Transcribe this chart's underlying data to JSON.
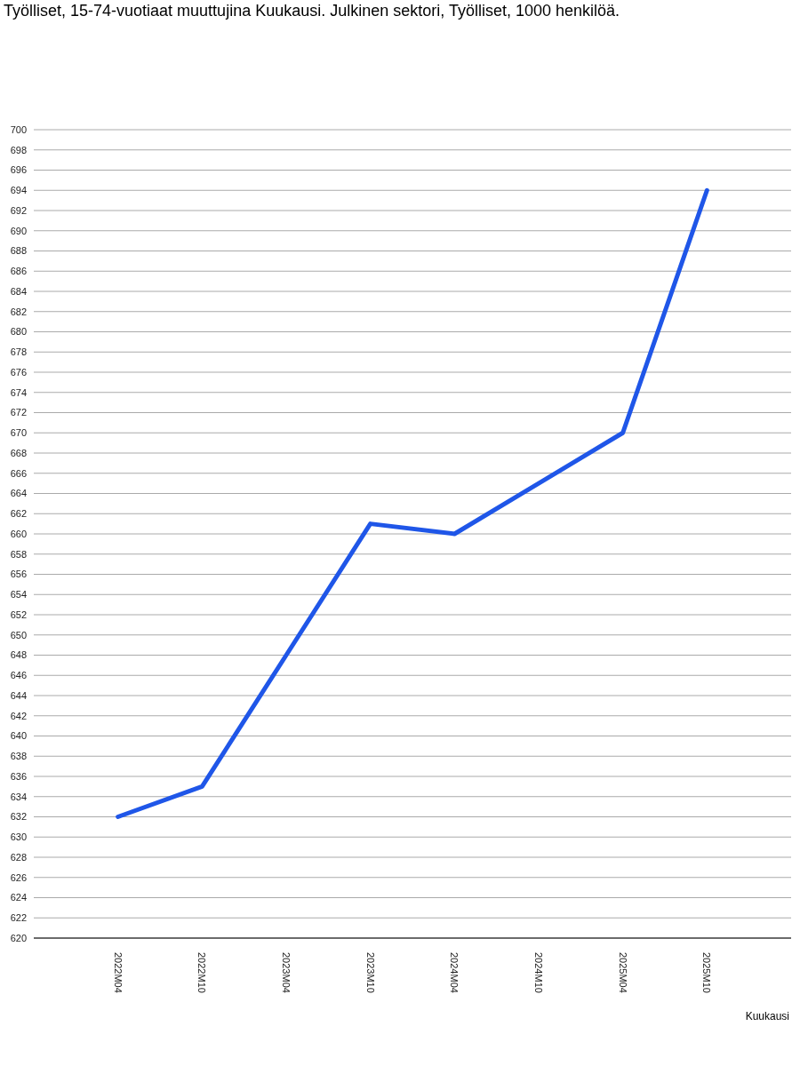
{
  "chart_data": {
    "type": "line",
    "title": "Työlliset, 15-74-vuotiaat muuttujina Kuukausi. Julkinen sektori, Työlliset, 1000 henkilöä.",
    "xlabel": "Kuukausi",
    "categories": [
      "2022M04",
      "2022M10",
      "2023M04",
      "2023M10",
      "2024M04",
      "2024M10",
      "2025M04",
      "2025M10"
    ],
    "series": [
      {
        "color": "#1f56e8",
        "values": [
          632,
          635,
          648,
          661,
          660,
          665,
          670,
          694
        ]
      }
    ],
    "ylim": [
      620,
      700
    ],
    "yticks": [
      620,
      622,
      624,
      626,
      628,
      630,
      632,
      634,
      636,
      638,
      640,
      642,
      644,
      646,
      648,
      650,
      652,
      654,
      656,
      658,
      660,
      662,
      664,
      666,
      668,
      670,
      672,
      674,
      676,
      678,
      680,
      682,
      684,
      686,
      688,
      690,
      692,
      694,
      696,
      698,
      700
    ],
    "grid": "y",
    "legend": false,
    "marker": "none",
    "line_style": "solid"
  }
}
